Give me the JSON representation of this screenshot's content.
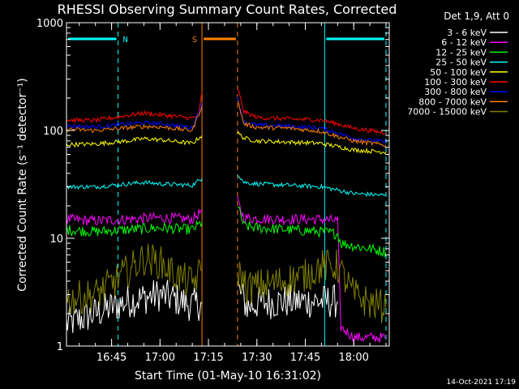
{
  "chart_data": {
    "type": "line",
    "title": "RHESSI Observing Summary Count Rates, Corrected",
    "xlabel": "Start Time (01-May-10 16:31:02)",
    "ylabel": "Corrected Count Rate (s⁻¹ detector⁻¹)",
    "yscale": "log",
    "ylim": [
      1,
      1000
    ],
    "xlim": [
      "16:31:02",
      "18:11:00"
    ],
    "xticks": [
      "16:45",
      "17:00",
      "17:15",
      "17:30",
      "17:45",
      "18:00"
    ],
    "yticks": [
      "1",
      "10",
      "100",
      "1000"
    ],
    "legend_title": "Det 1,9, Att 0",
    "legend_position": "right",
    "footer": "14-Oct-2021 17:19",
    "annotations": [
      {
        "label": "N",
        "start": "16:31:02",
        "end": "16:47:00",
        "color": "#00ffff"
      },
      {
        "label": "S",
        "start": "17:13:00",
        "end": "17:24:00",
        "color": "#ff8000"
      },
      {
        "label": "",
        "start": "17:51:00",
        "end": "18:10:00",
        "color": "#00ffff"
      }
    ],
    "gap": [
      "17:13:00",
      "17:24:00"
    ],
    "series": [
      {
        "name": "3 - 6 keV",
        "color": "#ffffff",
        "points": [
          [
            "16:31",
            1.6
          ],
          [
            "16:40",
            2.0
          ],
          [
            "16:45",
            2.3
          ],
          [
            "16:50",
            2.6
          ],
          [
            "16:55",
            2.8
          ],
          [
            "17:00",
            3.0
          ],
          [
            "17:05",
            2.7
          ],
          [
            "17:10",
            2.4
          ],
          [
            "17:13",
            2.5
          ],
          [
            "17:24",
            3.5
          ],
          [
            "17:27",
            2.3
          ],
          [
            "17:30",
            2.5
          ],
          [
            "17:40",
            2.6
          ],
          [
            "17:50",
            2.6
          ],
          [
            "17:55",
            2.6
          ]
        ]
      },
      {
        "name": "6 - 12 keV",
        "color": "#ff00ff",
        "points": [
          [
            "16:31",
            15
          ],
          [
            "16:40",
            14.5
          ],
          [
            "16:50",
            15
          ],
          [
            "17:00",
            15.5
          ],
          [
            "17:10",
            15
          ],
          [
            "17:13",
            18
          ],
          [
            "17:24",
            22
          ],
          [
            "17:26",
            15.5
          ],
          [
            "17:30",
            15.2
          ],
          [
            "17:40",
            15.0
          ],
          [
            "17:50",
            15.0
          ],
          [
            "17:55",
            14.5
          ],
          [
            "17:56",
            1.5
          ],
          [
            "18:00",
            1.2
          ],
          [
            "18:10",
            1.2
          ]
        ]
      },
      {
        "name": "12 - 25 keV",
        "color": "#00ff00",
        "points": [
          [
            "16:31",
            12
          ],
          [
            "16:40",
            11.5
          ],
          [
            "16:50",
            12
          ],
          [
            "17:00",
            12.5
          ],
          [
            "17:10",
            12
          ],
          [
            "17:13",
            14
          ],
          [
            "17:24",
            20
          ],
          [
            "17:26",
            13
          ],
          [
            "17:30",
            12.5
          ],
          [
            "17:40",
            12
          ],
          [
            "17:50",
            11.5
          ],
          [
            "17:55",
            11
          ],
          [
            "17:56",
            9
          ],
          [
            "18:00",
            8.5
          ],
          [
            "18:10",
            7.5
          ]
        ]
      },
      {
        "name": "25 - 50 keV",
        "color": "#00ffff",
        "points": [
          [
            "16:31",
            30
          ],
          [
            "16:40",
            30
          ],
          [
            "16:50",
            32
          ],
          [
            "16:55",
            33
          ],
          [
            "17:00",
            32
          ],
          [
            "17:10",
            31
          ],
          [
            "17:13",
            36
          ],
          [
            "17:24",
            40
          ],
          [
            "17:26",
            33
          ],
          [
            "17:30",
            32
          ],
          [
            "17:40",
            31
          ],
          [
            "17:50",
            30
          ],
          [
            "17:55",
            28
          ],
          [
            "18:00",
            26
          ],
          [
            "18:10",
            25
          ]
        ]
      },
      {
        "name": "50 - 100 keV",
        "color": "#ffff00",
        "points": [
          [
            "16:31",
            74
          ],
          [
            "16:40",
            75
          ],
          [
            "16:50",
            80
          ],
          [
            "16:55",
            84
          ],
          [
            "17:00",
            82
          ],
          [
            "17:10",
            76
          ],
          [
            "17:13",
            90
          ],
          [
            "17:24",
            95
          ],
          [
            "17:26",
            85
          ],
          [
            "17:30",
            80
          ],
          [
            "17:40",
            78
          ],
          [
            "17:50",
            76
          ],
          [
            "17:55",
            71
          ],
          [
            "18:00",
            66
          ],
          [
            "18:10",
            63
          ]
        ]
      },
      {
        "name": "100 - 300 keV",
        "color": "#ff0000",
        "points": [
          [
            "16:31",
            125
          ],
          [
            "16:40",
            124
          ],
          [
            "16:50",
            138
          ],
          [
            "16:55",
            145
          ],
          [
            "17:00",
            140
          ],
          [
            "17:10",
            130
          ],
          [
            "17:12",
            140
          ],
          [
            "17:13",
            230
          ],
          [
            "17:24",
            250
          ],
          [
            "17:26",
            150
          ],
          [
            "17:30",
            132
          ],
          [
            "17:40",
            128
          ],
          [
            "17:50",
            125
          ],
          [
            "17:55",
            115
          ],
          [
            "18:00",
            105
          ],
          [
            "18:10",
            95
          ]
        ]
      },
      {
        "name": "300 - 800 keV",
        "color": "#0000ff",
        "points": [
          [
            "16:31",
            110
          ],
          [
            "16:40",
            108
          ],
          [
            "16:50",
            115
          ],
          [
            "16:55",
            118
          ],
          [
            "17:00",
            116
          ],
          [
            "17:10",
            106
          ],
          [
            "17:13",
            180
          ],
          [
            "17:24",
            200
          ],
          [
            "17:26",
            120
          ],
          [
            "17:30",
            112
          ],
          [
            "17:40",
            110
          ],
          [
            "17:50",
            105
          ],
          [
            "17:55",
            95
          ],
          [
            "18:00",
            85
          ],
          [
            "18:10",
            78
          ]
        ]
      },
      {
        "name": "800 - 7000 keV",
        "color": "#ff8000",
        "points": [
          [
            "16:31",
            103
          ],
          [
            "16:40",
            100
          ],
          [
            "16:50",
            106
          ],
          [
            "16:55",
            109
          ],
          [
            "17:00",
            108
          ],
          [
            "17:10",
            100
          ],
          [
            "17:13",
            170
          ],
          [
            "17:24",
            190
          ],
          [
            "17:26",
            115
          ],
          [
            "17:30",
            107
          ],
          [
            "17:40",
            105
          ],
          [
            "17:50",
            98
          ],
          [
            "17:55",
            88
          ],
          [
            "18:00",
            80
          ],
          [
            "18:10",
            73
          ]
        ]
      },
      {
        "name": "7000 - 15000 keV",
        "color": "#808000",
        "points": [
          [
            "16:31",
            2.7
          ],
          [
            "16:40",
            3.0
          ],
          [
            "16:45",
            3.8
          ],
          [
            "16:50",
            5.0
          ],
          [
            "16:55",
            6.5
          ],
          [
            "17:00",
            6.0
          ],
          [
            "17:05",
            4.5
          ],
          [
            "17:10",
            3.8
          ],
          [
            "17:13",
            5
          ],
          [
            "17:24",
            5
          ],
          [
            "17:27",
            3.5
          ],
          [
            "17:35",
            3.8
          ],
          [
            "17:45",
            4.5
          ],
          [
            "17:50",
            5.5
          ],
          [
            "17:55",
            5.5
          ],
          [
            "18:00",
            3.0
          ],
          [
            "18:05",
            2.5
          ],
          [
            "18:10",
            2.3
          ]
        ]
      }
    ]
  }
}
